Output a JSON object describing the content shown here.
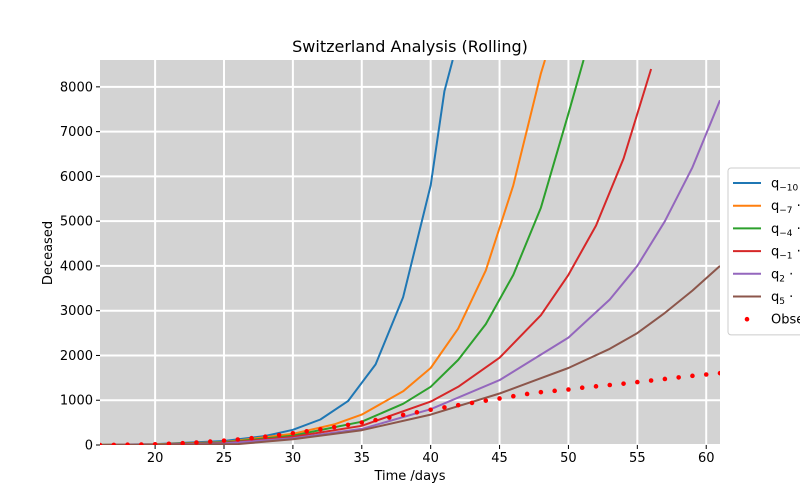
{
  "chart_data": {
    "type": "line",
    "title": "Switzerland Analysis (Rolling)",
    "xlabel": "Time /days",
    "ylabel": "Deceased",
    "xlim": [
      16,
      61
    ],
    "ylim": [
      0,
      8600
    ],
    "x_ticks": [
      20,
      25,
      30,
      35,
      40,
      45,
      50,
      55,
      60
    ],
    "y_ticks": [
      0,
      1000,
      2000,
      3000,
      4000,
      5000,
      6000,
      7000,
      8000
    ],
    "grid": true,
    "background": "#d3d3d3",
    "legend_position": "right, clipped",
    "series": [
      {
        "name_main": "q",
        "name_sub": "−10",
        "name_tail": " ·",
        "color": "#1f77b4",
        "x": [
          16,
          20,
          25,
          28,
          30,
          32,
          34,
          36,
          38,
          40,
          41,
          41.6
        ],
        "y": [
          2,
          20,
          90,
          200,
          340,
          570,
          980,
          1800,
          3300,
          5800,
          7900,
          8600
        ]
      },
      {
        "name_main": "q",
        "name_sub": "−7",
        "name_tail": " ·",
        "color": "#ff7f0e",
        "x": [
          16,
          20,
          25,
          30,
          33,
          35,
          38,
          40,
          42,
          44,
          46,
          48,
          48.3
        ],
        "y": [
          2,
          15,
          65,
          250,
          460,
          680,
          1200,
          1720,
          2600,
          3900,
          5800,
          8300,
          8600
        ]
      },
      {
        "name_main": "q",
        "name_sub": "−4",
        "name_tail": " ·",
        "color": "#2ca02c",
        "x": [
          16,
          20,
          25,
          30,
          35,
          38,
          40,
          42,
          44,
          46,
          48,
          50,
          51.1
        ],
        "y": [
          2,
          12,
          55,
          210,
          520,
          920,
          1300,
          1900,
          2700,
          3800,
          5300,
          7400,
          8600
        ]
      },
      {
        "name_main": "q",
        "name_sub": "−1",
        "name_tail": " ·",
        "color": "#d62728",
        "x": [
          16,
          20,
          25,
          30,
          35,
          40,
          42,
          45,
          48,
          50,
          52,
          54,
          56
        ],
        "y": [
          1,
          10,
          45,
          180,
          430,
          970,
          1300,
          1950,
          2900,
          3800,
          4900,
          6400,
          8400
        ]
      },
      {
        "name_main": "q",
        "name_sub": "2",
        "name_tail": " ·",
        "color": "#9467bd",
        "x": [
          16,
          20,
          25,
          30,
          35,
          40,
          45,
          50,
          53,
          55,
          57,
          59,
          61
        ],
        "y": [
          1,
          8,
          35,
          150,
          360,
          800,
          1450,
          2400,
          3250,
          4000,
          5000,
          6200,
          7700
        ]
      },
      {
        "name_main": "q",
        "name_sub": "5",
        "name_tail": " ·",
        "color": "#8c564b",
        "x": [
          16,
          26,
          30,
          35,
          40,
          45,
          50,
          53,
          55,
          57,
          59,
          61
        ],
        "y": [
          0,
          20,
          130,
          330,
          680,
          1150,
          1720,
          2150,
          2500,
          2950,
          3450,
          4000
        ]
      }
    ],
    "observed": {
      "name": "Obse",
      "color": "#ff0000",
      "x": [
        16,
        17,
        18,
        19,
        20,
        21,
        22,
        23,
        24,
        25,
        26,
        27,
        28,
        29,
        30,
        31,
        32,
        33,
        34,
        35,
        36,
        37,
        38,
        39,
        40,
        41,
        42,
        43,
        44,
        45,
        46,
        47,
        48,
        49,
        50,
        51,
        52,
        53,
        54,
        55,
        56,
        57,
        58,
        59,
        60,
        61
      ],
      "y": [
        0,
        3,
        6,
        10,
        17,
        27,
        40,
        56,
        76,
        98,
        123,
        152,
        185,
        222,
        262,
        305,
        350,
        398,
        449,
        502,
        557,
        614,
        672,
        730,
        787,
        840,
        890,
        940,
        990,
        1040,
        1090,
        1140,
        1180,
        1210,
        1240,
        1280,
        1310,
        1340,
        1370,
        1405,
        1440,
        1475,
        1510,
        1545,
        1575,
        1605
      ]
    }
  }
}
